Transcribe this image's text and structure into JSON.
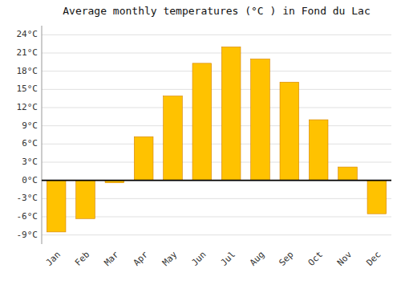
{
  "chart_data": {
    "type": "bar",
    "title": "Average monthly temperatures (°C ) in Fond du Lac",
    "categories": [
      "Jan",
      "Feb",
      "Mar",
      "Apr",
      "May",
      "Jun",
      "Jul",
      "Aug",
      "Sep",
      "Oct",
      "Nov",
      "Dec"
    ],
    "values": [
      -8.5,
      -6.3,
      -0.4,
      7.2,
      13.9,
      19.3,
      22.0,
      20.0,
      16.2,
      10.0,
      2.2,
      -5.5
    ],
    "color": "#FFC200",
    "ylim": [
      -10.5,
      25.5
    ],
    "yticks": [
      {
        "value": -9,
        "label": "-9°C"
      },
      {
        "value": -6,
        "label": "-6°C"
      },
      {
        "value": -3,
        "label": "-3°C"
      },
      {
        "value": 0,
        "label": "0°C"
      },
      {
        "value": 3,
        "label": "3°C"
      },
      {
        "value": 6,
        "label": "6°C"
      },
      {
        "value": 9,
        "label": "9°C"
      },
      {
        "value": 12,
        "label": "12°C"
      },
      {
        "value": 15,
        "label": "15°C"
      },
      {
        "value": 18,
        "label": "18°C"
      },
      {
        "value": 21,
        "label": "21°C"
      },
      {
        "value": 24,
        "label": "24°C"
      }
    ],
    "grid": true
  }
}
